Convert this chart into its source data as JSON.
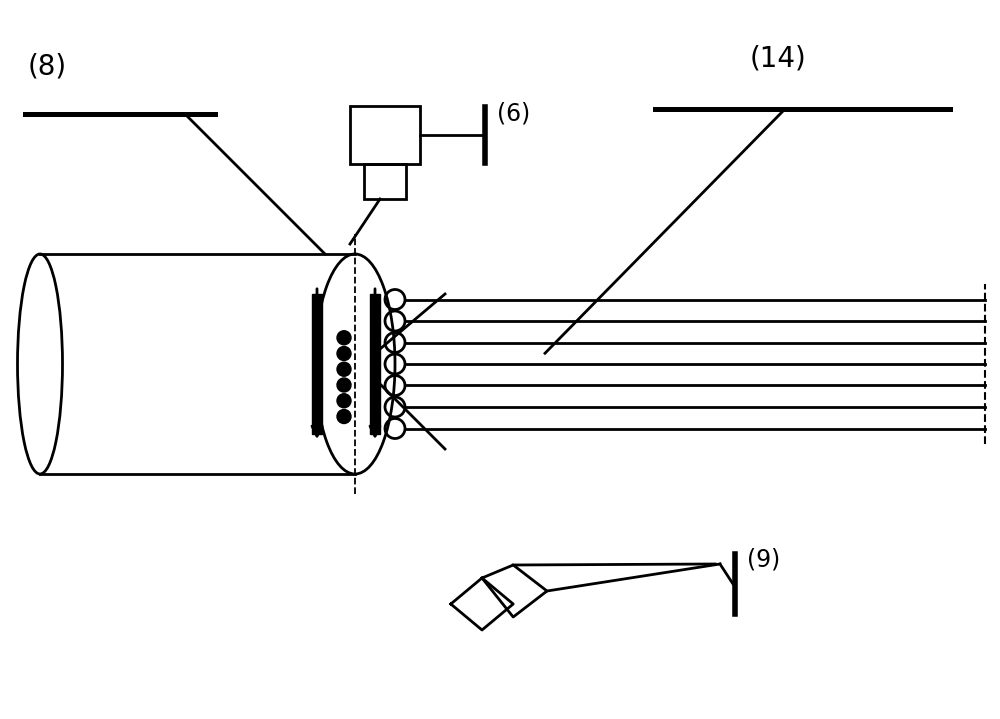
{
  "bg_color": "#ffffff",
  "line_color": "#000000",
  "label_8": "(8)",
  "label_14": "(14)",
  "label_6": "(6)",
  "label_9": "(9)",
  "fig_width": 10.0,
  "fig_height": 7.19
}
